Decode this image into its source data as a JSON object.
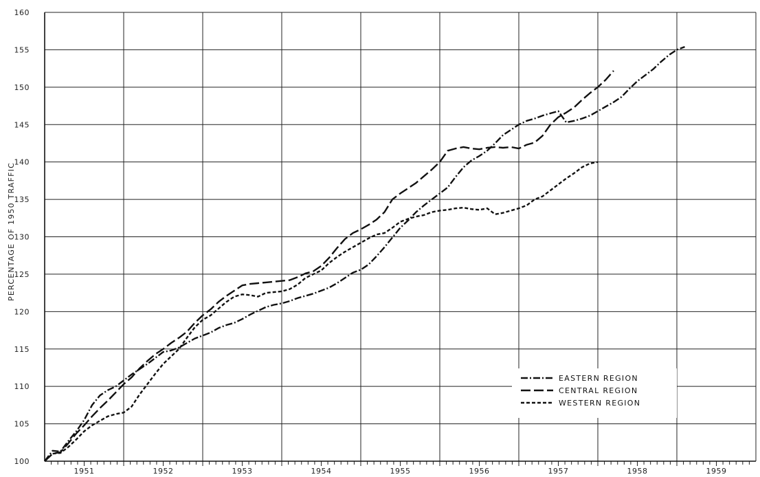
{
  "chart_data": {
    "type": "line",
    "title": "",
    "xlabel": "",
    "ylabel": "PERCENTAGE OF 1950 TRAFFIC",
    "x_tick_labels": [
      "1951",
      "1952",
      "1953",
      "1954",
      "1955",
      "1956",
      "1957",
      "1958",
      "1959"
    ],
    "xlim": [
      1950.5,
      1959.5
    ],
    "ylim": [
      100,
      160
    ],
    "y_ticks": [
      100,
      105,
      110,
      115,
      120,
      125,
      130,
      135,
      140,
      145,
      150,
      155,
      160
    ],
    "grid": true,
    "legend_position": "bottom-right",
    "series": [
      {
        "name": "EASTERN REGION",
        "style": "dash-dot",
        "points": [
          [
            1950.5,
            100.0
          ],
          [
            1950.6,
            101.4
          ],
          [
            1950.7,
            101.3
          ],
          [
            1950.8,
            102.7
          ],
          [
            1950.9,
            104.0
          ],
          [
            1951.0,
            105.5
          ],
          [
            1951.1,
            107.5
          ],
          [
            1951.2,
            108.8
          ],
          [
            1951.3,
            109.5
          ],
          [
            1951.4,
            110.0
          ],
          [
            1951.5,
            110.8
          ],
          [
            1951.6,
            111.6
          ],
          [
            1951.7,
            112.3
          ],
          [
            1951.8,
            113.0
          ],
          [
            1951.9,
            113.8
          ],
          [
            1952.0,
            114.6
          ],
          [
            1952.1,
            114.8
          ],
          [
            1952.2,
            115.2
          ],
          [
            1952.3,
            115.8
          ],
          [
            1952.4,
            116.4
          ],
          [
            1952.5,
            116.8
          ],
          [
            1952.6,
            117.2
          ],
          [
            1952.7,
            117.8
          ],
          [
            1952.8,
            118.2
          ],
          [
            1952.9,
            118.5
          ],
          [
            1953.0,
            119.0
          ],
          [
            1953.1,
            119.6
          ],
          [
            1953.2,
            120.1
          ],
          [
            1953.3,
            120.6
          ],
          [
            1953.4,
            120.9
          ],
          [
            1953.5,
            121.1
          ],
          [
            1953.6,
            121.4
          ],
          [
            1953.7,
            121.8
          ],
          [
            1953.8,
            122.1
          ],
          [
            1953.9,
            122.4
          ],
          [
            1954.0,
            122.8
          ],
          [
            1954.1,
            123.2
          ],
          [
            1954.2,
            123.8
          ],
          [
            1954.3,
            124.5
          ],
          [
            1954.4,
            125.2
          ],
          [
            1954.5,
            125.6
          ],
          [
            1954.6,
            126.3
          ],
          [
            1954.7,
            127.4
          ],
          [
            1954.8,
            128.6
          ],
          [
            1954.9,
            129.9
          ],
          [
            1955.0,
            131.2
          ],
          [
            1955.1,
            132.2
          ],
          [
            1955.2,
            133.3
          ],
          [
            1955.3,
            134.2
          ],
          [
            1955.4,
            135.0
          ],
          [
            1955.5,
            135.8
          ],
          [
            1955.6,
            136.6
          ],
          [
            1955.7,
            138.0
          ],
          [
            1955.8,
            139.3
          ],
          [
            1955.9,
            140.2
          ],
          [
            1956.0,
            140.8
          ],
          [
            1956.1,
            141.5
          ],
          [
            1956.2,
            142.5
          ],
          [
            1956.3,
            143.6
          ],
          [
            1956.4,
            144.3
          ],
          [
            1956.5,
            145.0
          ],
          [
            1956.6,
            145.5
          ],
          [
            1956.7,
            145.8
          ],
          [
            1956.8,
            146.2
          ],
          [
            1956.9,
            146.5
          ],
          [
            1957.0,
            146.8
          ],
          [
            1957.1,
            145.3
          ],
          [
            1957.2,
            145.5
          ],
          [
            1957.3,
            145.8
          ],
          [
            1957.4,
            146.2
          ],
          [
            1957.5,
            146.8
          ],
          [
            1957.6,
            147.4
          ],
          [
            1957.7,
            148.0
          ],
          [
            1957.8,
            148.7
          ],
          [
            1957.9,
            149.8
          ],
          [
            1958.0,
            150.8
          ],
          [
            1958.1,
            151.6
          ],
          [
            1958.2,
            152.4
          ],
          [
            1958.3,
            153.4
          ],
          [
            1958.4,
            154.3
          ],
          [
            1958.5,
            155.0
          ],
          [
            1958.6,
            155.4
          ]
        ]
      },
      {
        "name": "CENTRAL REGION",
        "style": "long-dash",
        "points": [
          [
            1950.5,
            100.0
          ],
          [
            1950.6,
            101.0
          ],
          [
            1950.7,
            101.2
          ],
          [
            1950.8,
            102.4
          ],
          [
            1950.9,
            103.7
          ],
          [
            1951.0,
            104.8
          ],
          [
            1951.1,
            106.0
          ],
          [
            1951.2,
            107.1
          ],
          [
            1951.3,
            108.1
          ],
          [
            1951.4,
            109.2
          ],
          [
            1951.5,
            110.3
          ],
          [
            1951.6,
            111.2
          ],
          [
            1951.7,
            112.4
          ],
          [
            1951.8,
            113.4
          ],
          [
            1951.9,
            114.3
          ],
          [
            1952.0,
            115.0
          ],
          [
            1952.1,
            115.8
          ],
          [
            1952.2,
            116.5
          ],
          [
            1952.3,
            117.3
          ],
          [
            1952.4,
            118.5
          ],
          [
            1952.5,
            119.5
          ],
          [
            1952.6,
            120.3
          ],
          [
            1952.7,
            121.3
          ],
          [
            1952.8,
            122.1
          ],
          [
            1952.9,
            122.8
          ],
          [
            1953.0,
            123.5
          ],
          [
            1953.1,
            123.7
          ],
          [
            1953.2,
            123.8
          ],
          [
            1953.3,
            123.9
          ],
          [
            1953.4,
            124.0
          ],
          [
            1953.5,
            124.1
          ],
          [
            1953.6,
            124.2
          ],
          [
            1953.7,
            124.6
          ],
          [
            1953.8,
            125.1
          ],
          [
            1953.9,
            125.4
          ],
          [
            1954.0,
            126.1
          ],
          [
            1954.1,
            127.2
          ],
          [
            1954.2,
            128.5
          ],
          [
            1954.3,
            129.7
          ],
          [
            1954.4,
            130.5
          ],
          [
            1954.5,
            131.0
          ],
          [
            1954.6,
            131.6
          ],
          [
            1954.7,
            132.3
          ],
          [
            1954.8,
            133.3
          ],
          [
            1954.9,
            135.0
          ],
          [
            1955.0,
            135.8
          ],
          [
            1955.1,
            136.5
          ],
          [
            1955.2,
            137.2
          ],
          [
            1955.3,
            138.1
          ],
          [
            1955.4,
            139.0
          ],
          [
            1955.5,
            140.0
          ],
          [
            1955.6,
            141.5
          ],
          [
            1955.7,
            141.8
          ],
          [
            1955.8,
            142.0
          ],
          [
            1955.9,
            141.8
          ],
          [
            1956.0,
            141.7
          ],
          [
            1956.1,
            141.9
          ],
          [
            1956.2,
            142.0
          ],
          [
            1956.3,
            141.9
          ],
          [
            1956.4,
            142.0
          ],
          [
            1956.5,
            141.8
          ],
          [
            1956.6,
            142.3
          ],
          [
            1956.7,
            142.6
          ],
          [
            1956.8,
            143.5
          ],
          [
            1956.9,
            145.0
          ],
          [
            1957.0,
            146.0
          ],
          [
            1957.1,
            146.6
          ],
          [
            1957.2,
            147.3
          ],
          [
            1957.3,
            148.3
          ],
          [
            1957.4,
            149.2
          ],
          [
            1957.5,
            150.0
          ],
          [
            1957.6,
            151.0
          ],
          [
            1957.7,
            152.2
          ]
        ]
      },
      {
        "name": "WESTERN REGION",
        "style": "short-dash",
        "points": [
          [
            1950.5,
            100.0
          ],
          [
            1950.6,
            101.0
          ],
          [
            1950.7,
            101.1
          ],
          [
            1950.8,
            101.9
          ],
          [
            1950.9,
            102.9
          ],
          [
            1951.0,
            104.0
          ],
          [
            1951.1,
            104.8
          ],
          [
            1951.2,
            105.4
          ],
          [
            1951.3,
            106.0
          ],
          [
            1951.4,
            106.3
          ],
          [
            1951.5,
            106.5
          ],
          [
            1951.6,
            107.3
          ],
          [
            1951.7,
            108.9
          ],
          [
            1951.8,
            110.3
          ],
          [
            1951.9,
            111.7
          ],
          [
            1952.0,
            113.0
          ],
          [
            1952.1,
            114.0
          ],
          [
            1952.2,
            115.0
          ],
          [
            1952.3,
            116.5
          ],
          [
            1952.4,
            117.9
          ],
          [
            1952.5,
            118.9
          ],
          [
            1952.6,
            119.5
          ],
          [
            1952.7,
            120.4
          ],
          [
            1952.8,
            121.3
          ],
          [
            1952.9,
            122.0
          ],
          [
            1953.0,
            122.3
          ],
          [
            1953.1,
            122.2
          ],
          [
            1953.2,
            122.0
          ],
          [
            1953.3,
            122.5
          ],
          [
            1953.4,
            122.6
          ],
          [
            1953.5,
            122.7
          ],
          [
            1953.6,
            123.0
          ],
          [
            1953.7,
            123.6
          ],
          [
            1953.8,
            124.5
          ],
          [
            1953.9,
            125.0
          ],
          [
            1954.0,
            125.5
          ],
          [
            1954.1,
            126.5
          ],
          [
            1954.2,
            127.3
          ],
          [
            1954.3,
            128.0
          ],
          [
            1954.4,
            128.6
          ],
          [
            1954.5,
            129.2
          ],
          [
            1954.6,
            129.8
          ],
          [
            1954.7,
            130.3
          ],
          [
            1954.8,
            130.5
          ],
          [
            1954.9,
            131.2
          ],
          [
            1955.0,
            132.0
          ],
          [
            1955.1,
            132.4
          ],
          [
            1955.2,
            132.7
          ],
          [
            1955.3,
            132.9
          ],
          [
            1955.4,
            133.3
          ],
          [
            1955.5,
            133.5
          ],
          [
            1955.6,
            133.6
          ],
          [
            1955.7,
            133.8
          ],
          [
            1955.8,
            133.9
          ],
          [
            1955.9,
            133.7
          ],
          [
            1956.0,
            133.6
          ],
          [
            1956.1,
            133.8
          ],
          [
            1956.2,
            133.0
          ],
          [
            1956.3,
            133.2
          ],
          [
            1956.4,
            133.5
          ],
          [
            1956.5,
            133.8
          ],
          [
            1956.6,
            134.2
          ],
          [
            1956.7,
            135.0
          ],
          [
            1956.8,
            135.4
          ],
          [
            1956.9,
            136.2
          ],
          [
            1957.0,
            137.0
          ],
          [
            1957.1,
            137.8
          ],
          [
            1957.2,
            138.5
          ],
          [
            1957.3,
            139.3
          ],
          [
            1957.4,
            139.8
          ],
          [
            1957.5,
            140.0
          ]
        ]
      }
    ]
  }
}
